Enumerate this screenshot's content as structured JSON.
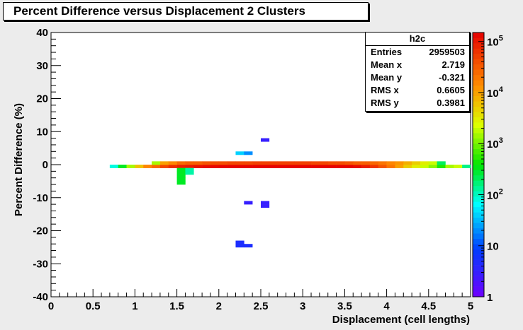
{
  "title": "Percent Difference versus Displacement 2 Clusters",
  "stats": {
    "name": "h2c",
    "rows": [
      {
        "label": "Entries",
        "value": "2959503"
      },
      {
        "label": "Mean x",
        "value": "2.719"
      },
      {
        "label": "Mean y",
        "value": "-0.321"
      },
      {
        "label": "RMS x",
        "value": "0.6605"
      },
      {
        "label": "RMS y",
        "value": "0.3981"
      }
    ]
  },
  "chart_data": {
    "type": "heatmap",
    "xlabel": "Displacement (cell lengths)",
    "ylabel": "Percent Difference (%)",
    "xlim": [
      0,
      5
    ],
    "ylim": [
      -40,
      40
    ],
    "x_ticks": [
      "0",
      "0.5",
      "1",
      "1.5",
      "2",
      "2.5",
      "3",
      "3.5",
      "4",
      "4.5",
      "5"
    ],
    "y_ticks": [
      "-40",
      "-30",
      "-20",
      "-10",
      "0",
      "10",
      "20",
      "30",
      "40"
    ],
    "color_scale": "log",
    "z_range": [
      1,
      150000
    ],
    "colorbar_labels": [
      {
        "value": 1,
        "label": "1"
      },
      {
        "value": 10,
        "label": "10"
      },
      {
        "value": 100,
        "label": "10^2"
      },
      {
        "value": 1000,
        "label": "10^3"
      },
      {
        "value": 10000,
        "label": "10^4"
      },
      {
        "value": 100000,
        "label": "10^5"
      }
    ],
    "bin_size": [
      0.1,
      1
    ],
    "cells": [
      [
        0.7,
        -1,
        80
      ],
      [
        0.8,
        -1,
        300
      ],
      [
        0.9,
        -1,
        1500
      ],
      [
        1.0,
        -1,
        6000
      ],
      [
        1.1,
        -1,
        15000
      ],
      [
        1.2,
        -1,
        25000
      ],
      [
        1.3,
        -1,
        45000
      ],
      [
        1.4,
        -1,
        70000
      ],
      [
        1.5,
        -1,
        90000
      ],
      [
        1.6,
        -1,
        100000
      ],
      [
        1.7,
        -1,
        110000
      ],
      [
        1.8,
        -1,
        120000
      ],
      [
        1.9,
        -1,
        130000
      ],
      [
        2.0,
        -1,
        140000
      ],
      [
        2.1,
        -1,
        140000
      ],
      [
        2.2,
        -1,
        140000
      ],
      [
        2.3,
        -1,
        140000
      ],
      [
        2.4,
        -1,
        140000
      ],
      [
        2.5,
        -1,
        140000
      ],
      [
        2.6,
        -1,
        140000
      ],
      [
        2.7,
        -1,
        140000
      ],
      [
        2.8,
        -1,
        140000
      ],
      [
        2.9,
        -1,
        140000
      ],
      [
        3.0,
        -1,
        140000
      ],
      [
        3.1,
        -1,
        140000
      ],
      [
        3.2,
        -1,
        140000
      ],
      [
        3.3,
        -1,
        140000
      ],
      [
        3.4,
        -1,
        140000
      ],
      [
        3.5,
        -1,
        140000
      ],
      [
        3.6,
        -1,
        120000
      ],
      [
        3.7,
        -1,
        90000
      ],
      [
        3.8,
        -1,
        60000
      ],
      [
        3.9,
        -1,
        35000
      ],
      [
        4.0,
        -1,
        20000
      ],
      [
        4.1,
        -1,
        10000
      ],
      [
        4.2,
        -1,
        5000
      ],
      [
        4.3,
        -1,
        3000
      ],
      [
        4.4,
        -1,
        2000
      ],
      [
        4.5,
        -1,
        1200
      ],
      [
        4.6,
        -1,
        500
      ],
      [
        4.7,
        -1,
        1500
      ],
      [
        4.8,
        -1,
        2000
      ],
      [
        4.9,
        -1,
        150
      ],
      [
        1.2,
        0,
        1500
      ],
      [
        1.3,
        0,
        10000
      ],
      [
        1.4,
        0,
        15000
      ],
      [
        1.5,
        0,
        25000
      ],
      [
        1.6,
        0,
        30000
      ],
      [
        1.7,
        0,
        30000
      ],
      [
        1.8,
        0,
        35000
      ],
      [
        1.9,
        0,
        40000
      ],
      [
        2.0,
        0,
        40000
      ],
      [
        2.1,
        0,
        45000
      ],
      [
        2.2,
        0,
        45000
      ],
      [
        2.3,
        0,
        45000
      ],
      [
        2.4,
        0,
        50000
      ],
      [
        2.5,
        0,
        50000
      ],
      [
        2.6,
        0,
        50000
      ],
      [
        2.7,
        0,
        50000
      ],
      [
        2.8,
        0,
        50000
      ],
      [
        2.9,
        0,
        50000
      ],
      [
        3.0,
        0,
        50000
      ],
      [
        3.1,
        0,
        45000
      ],
      [
        3.2,
        0,
        45000
      ],
      [
        3.3,
        0,
        40000
      ],
      [
        3.4,
        0,
        40000
      ],
      [
        3.5,
        0,
        35000
      ],
      [
        3.6,
        0,
        30000
      ],
      [
        3.7,
        0,
        30000
      ],
      [
        3.8,
        0,
        25000
      ],
      [
        3.9,
        0,
        20000
      ],
      [
        4.0,
        0,
        15000
      ],
      [
        4.1,
        0,
        12000
      ],
      [
        4.2,
        0,
        8000
      ],
      [
        4.3,
        0,
        5000
      ],
      [
        4.4,
        0,
        3000
      ],
      [
        4.5,
        0,
        2000
      ],
      [
        4.6,
        0,
        200
      ],
      [
        1.5,
        -2,
        300
      ],
      [
        1.6,
        -2,
        120
      ],
      [
        1.5,
        -3,
        300
      ],
      [
        1.6,
        -3,
        120
      ],
      [
        1.5,
        -4,
        300
      ],
      [
        1.5,
        -5,
        300
      ],
      [
        1.5,
        -6,
        300
      ],
      [
        2.2,
        3,
        40
      ],
      [
        2.3,
        3,
        20
      ],
      [
        2.5,
        7,
        3
      ],
      [
        2.3,
        -12,
        3
      ],
      [
        2.5,
        -12,
        3
      ],
      [
        2.5,
        -13,
        3
      ],
      [
        2.2,
        -24,
        5
      ],
      [
        2.2,
        -25,
        5
      ],
      [
        2.3,
        -25,
        5
      ]
    ]
  }
}
